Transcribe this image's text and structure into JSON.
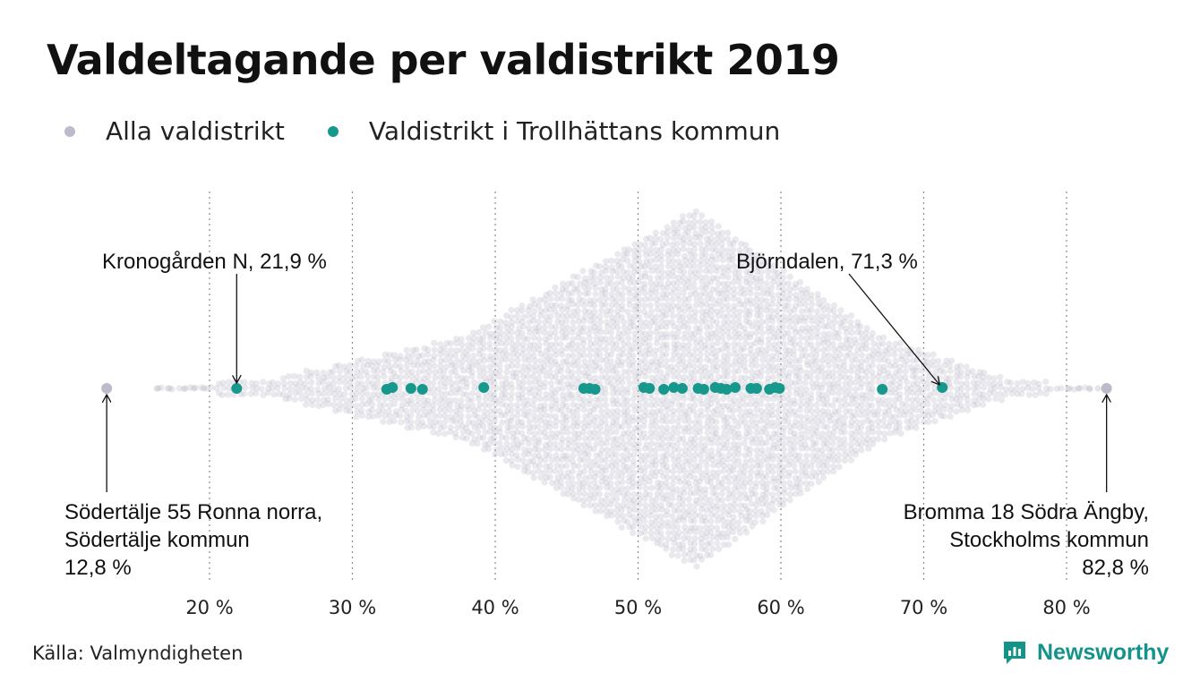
{
  "title": "Valdeltagande per valdistrikt 2019",
  "legend": [
    {
      "label": "Alla valdistrikt",
      "color": "#bdbbcb"
    },
    {
      "label": "Valdistrikt i Trollhättans kommun",
      "color": "#16988c"
    }
  ],
  "source": "Källa: Valmyndigheten",
  "brand": "Newsworthy",
  "colors": {
    "all": "#bdbbcb",
    "highlight": "#16988c",
    "grid": "#8a8a8a",
    "text": "#111111"
  },
  "chart_data": {
    "type": "scatter",
    "variant": "beeswarm",
    "xlim": [
      12.8,
      82.8
    ],
    "x_ticks": [
      {
        "value": 20,
        "label": "20 %"
      },
      {
        "value": 30,
        "label": "30 %"
      },
      {
        "value": 40,
        "label": "40 %"
      },
      {
        "value": 50,
        "label": "50 %"
      },
      {
        "value": 60,
        "label": "60 %"
      },
      {
        "value": 70,
        "label": "70 %"
      },
      {
        "value": 80,
        "label": "80 %"
      }
    ],
    "grid": "vertical dotted",
    "series": [
      {
        "name": "Alla valdistrikt",
        "color": "#bdbbcb",
        "min": 12.8,
        "max": 82.8,
        "peak": 54.0,
        "extremes": [
          12.8,
          82.8
        ]
      },
      {
        "name": "Valdistrikt i Trollhättans kommun",
        "color": "#16988c",
        "values": [
          21.9,
          32.4,
          32.8,
          34.1,
          34.9,
          39.2,
          46.2,
          46.6,
          47.0,
          50.4,
          50.8,
          51.8,
          52.5,
          53.1,
          54.2,
          54.6,
          55.4,
          55.8,
          56.2,
          56.8,
          57.9,
          58.3,
          59.2,
          59.6,
          59.9,
          67.1,
          71.3
        ]
      }
    ],
    "annotations": [
      {
        "lines": [
          "Kronogården N, 21,9 %"
        ],
        "x": 21.9
      },
      {
        "lines": [
          "Björndalen, 71,3 %"
        ],
        "x": 71.3
      },
      {
        "lines": [
          "Södertälje 55 Ronna norra,",
          "Södertälje kommun",
          "12,8 %"
        ],
        "x": 12.8
      },
      {
        "lines": [
          "Bromma 18 Södra Ängby,",
          "Stockholms kommun",
          "82,8 %"
        ],
        "x": 82.8
      }
    ]
  }
}
